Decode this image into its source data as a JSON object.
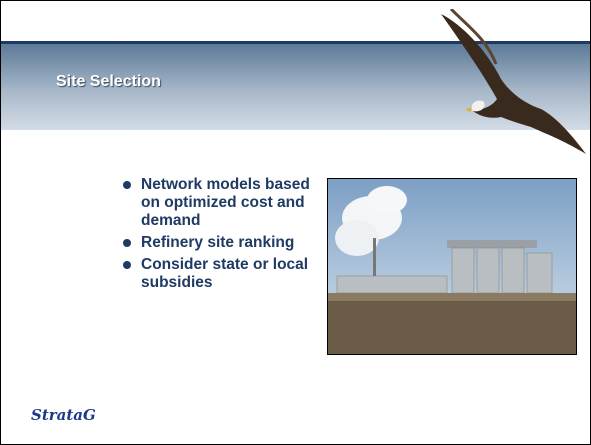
{
  "header": {
    "title": "Site Selection"
  },
  "bullets": [
    "Network models based on optimized cost and demand",
    "Refinery site ranking",
    "Consider state or local subsidies"
  ],
  "logo": {
    "text": "StrataG"
  }
}
